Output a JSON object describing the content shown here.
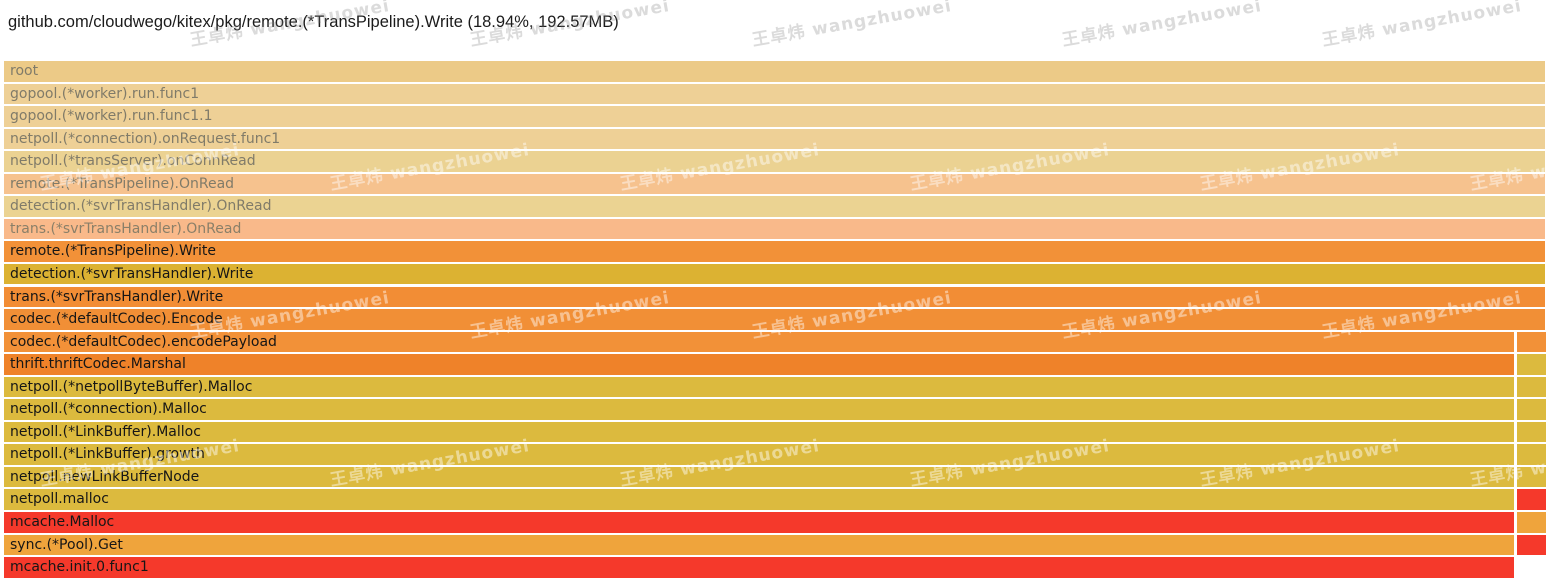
{
  "header": {
    "title": "github.com/cloudwego/kitex/pkg/remote.(*TransPipeline).Write (18.94%, 192.57MB)"
  },
  "watermark": {
    "text": "王卓炜 wangzhuowei"
  },
  "chart_data": {
    "type": "flamegraph",
    "title": "github.com/cloudwego/kitex/pkg/remote.(*TransPipeline).Write (18.94%, 192.57MB)",
    "selected_frame": "remote.(*TransPipeline).Write",
    "selected_percent": "18.94%",
    "selected_value": "192.57MB",
    "orientation": "icicle-top-down",
    "colors": {
      "faded_text": "#807b69",
      "active_text": "#161616",
      "red": "#f5392b",
      "gold": "#dcba3e",
      "orange": "#f29138",
      "amber": "#efa43c"
    },
    "frames": [
      {
        "label": "root",
        "bg": "#ecca87",
        "fg": "#807b69",
        "span": "full",
        "side": null
      },
      {
        "label": "gopool.(*worker).run.func1",
        "bg": "#eed096",
        "fg": "#807b69",
        "span": "full",
        "side": null
      },
      {
        "label": "gopool.(*worker).run.func1.1",
        "bg": "#eed096",
        "fg": "#807b69",
        "span": "full",
        "side": null
      },
      {
        "label": "netpoll.(*connection).onRequest.func1",
        "bg": "#eed096",
        "fg": "#807b69",
        "span": "full",
        "side": null
      },
      {
        "label": "netpoll.(*transServer).onConnRead",
        "bg": "#ebd292",
        "fg": "#807b69",
        "span": "full",
        "side": null
      },
      {
        "label": "remote.(*TransPipeline).OnRead",
        "bg": "#f6c28e",
        "fg": "#807b69",
        "span": "full",
        "side": null
      },
      {
        "label": "detection.(*svrTransHandler).OnRead",
        "bg": "#ebd392",
        "fg": "#807b69",
        "span": "full",
        "side": null
      },
      {
        "label": "trans.(*svrTransHandler).OnRead",
        "bg": "#f9b98a",
        "fg": "#8a7f68",
        "span": "full",
        "side": null
      },
      {
        "label": "remote.(*TransPipeline).Write",
        "bg": "#f29138",
        "fg": "#161616",
        "span": "full",
        "side": null
      },
      {
        "label": "detection.(*svrTransHandler).Write",
        "bg": "#dcb232",
        "fg": "#161616",
        "span": "full",
        "side": null
      },
      {
        "label": "trans.(*svrTransHandler).Write",
        "bg": "#f28d35",
        "fg": "#161616",
        "span": "full",
        "side": null
      },
      {
        "label": "codec.(*defaultCodec).Encode",
        "bg": "#f18f36",
        "fg": "#161616",
        "span": "full",
        "side": null
      },
      {
        "label": "codec.(*defaultCodec).encodePayload",
        "bg": "#f29138",
        "fg": "#161616",
        "span": "split",
        "side": "#f29138"
      },
      {
        "label": "thrift.thriftCodec.Marshal",
        "bg": "#ef8229",
        "fg": "#161616",
        "span": "split",
        "side": "#dcba3e"
      },
      {
        "label": "netpoll.(*netpollByteBuffer).Malloc",
        "bg": "#dcba3e",
        "fg": "#161616",
        "span": "split",
        "side": "#dcba3e"
      },
      {
        "label": "netpoll.(*connection).Malloc",
        "bg": "#dcba3e",
        "fg": "#161616",
        "span": "split",
        "side": "#dcba3e"
      },
      {
        "label": "netpoll.(*LinkBuffer).Malloc",
        "bg": "#dcba3e",
        "fg": "#161616",
        "span": "split",
        "side": "#dcba3e"
      },
      {
        "label": "netpoll.(*LinkBuffer).growth",
        "bg": "#dcba3e",
        "fg": "#161616",
        "span": "split",
        "side": "#dcba3e"
      },
      {
        "label": "netpoll.newLinkBufferNode",
        "bg": "#dcba3e",
        "fg": "#161616",
        "span": "split",
        "side": "#dcba3e"
      },
      {
        "label": "netpoll.malloc",
        "bg": "#dcba3e",
        "fg": "#161616",
        "span": "split",
        "side": "#f5392b"
      },
      {
        "label": "mcache.Malloc",
        "bg": "#f5392b",
        "fg": "#161616",
        "span": "split",
        "side": "#efa43c"
      },
      {
        "label": "sync.(*Pool).Get",
        "bg": "#efa43c",
        "fg": "#161616",
        "span": "split",
        "side": "#f5392b"
      },
      {
        "label": "mcache.init.0.func1",
        "bg": "#f5392b",
        "fg": "#161616",
        "span": "left",
        "side": null
      }
    ]
  }
}
